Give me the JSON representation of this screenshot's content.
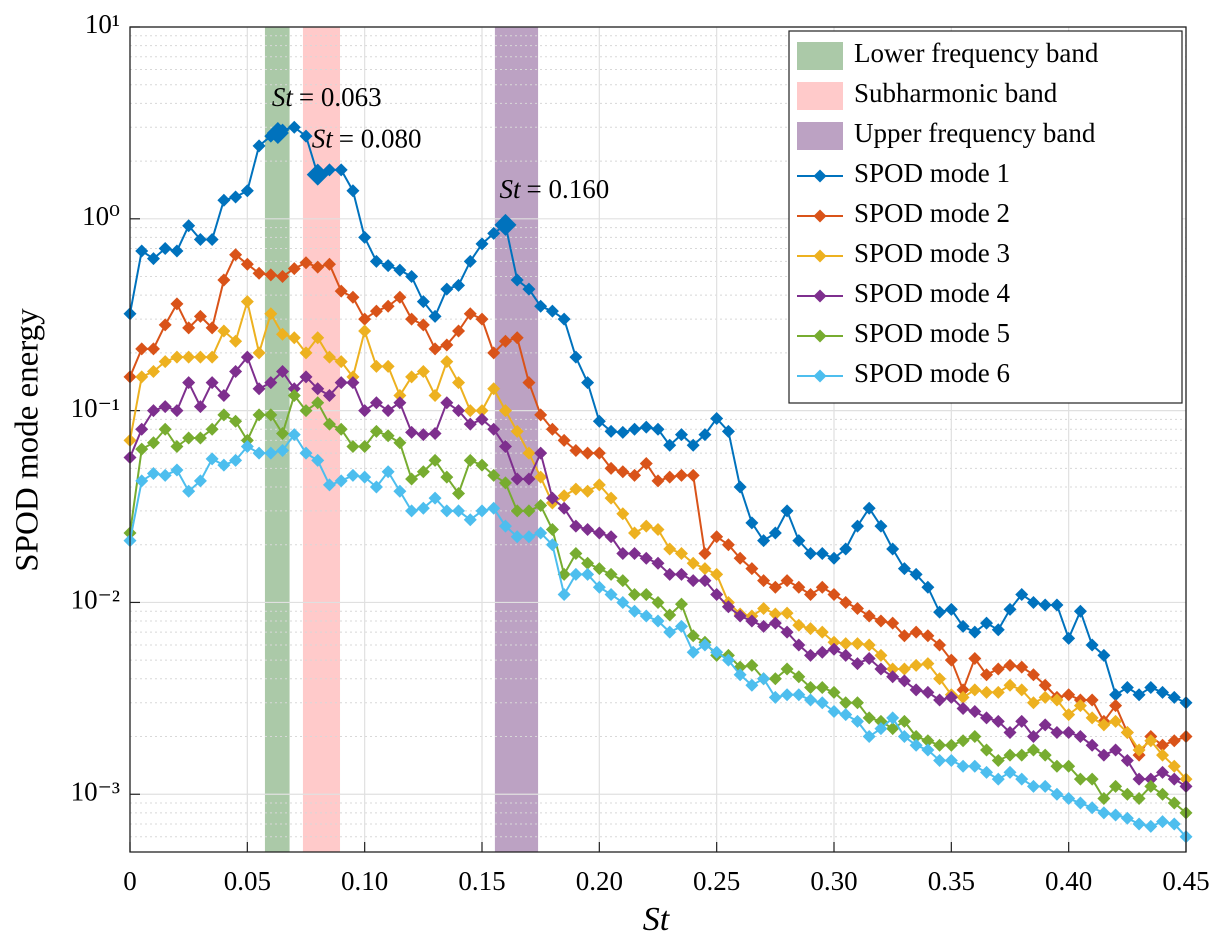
{
  "chart_data": {
    "type": "line",
    "xlabel": "St",
    "ylabel": "SPOD mode energy",
    "xlim": [
      0,
      0.45
    ],
    "ylim": [
      0.0005,
      10
    ],
    "log_y": true,
    "grid": true,
    "minor_grid": true,
    "legend": "top-right",
    "xticks": [
      0,
      0.05,
      {
        "value": 0.1,
        "label": "0.10"
      },
      0.15,
      {
        "value": 0.2,
        "label": "0.20"
      },
      0.25,
      {
        "value": 0.3,
        "label": "0.30"
      },
      0.35,
      {
        "value": 0.4,
        "label": "0.40"
      },
      0.45
    ],
    "yticks": [
      {
        "value": 0.001,
        "label": "10⁻³"
      },
      {
        "value": 0.01,
        "label": "10⁻²"
      },
      {
        "value": 0.1,
        "label": "10⁻¹"
      },
      {
        "value": 1,
        "label": "10⁰"
      },
      {
        "value": 10,
        "label": "10¹"
      }
    ],
    "bands": [
      {
        "name": "Lower frequency band",
        "color": "#abc9a8",
        "range": [
          0.0575,
          0.068
        ]
      },
      {
        "name": "Subharmonic band",
        "color": "#ffcaca",
        "range": [
          0.0737,
          0.0895
        ]
      },
      {
        "name": "Upper frequency band",
        "color": "#bca2c3",
        "range": [
          0.1555,
          0.1739
        ]
      }
    ],
    "x": [
      0,
      0.005,
      0.01,
      0.015,
      0.02,
      0.025,
      0.03,
      0.035,
      0.04,
      0.045,
      0.05,
      0.055,
      0.06,
      0.065,
      0.07,
      0.075,
      0.08,
      0.085,
      0.09,
      0.095,
      0.1,
      0.105,
      0.11,
      0.115,
      0.12,
      0.125,
      0.13,
      0.135,
      0.14,
      0.145,
      0.15,
      0.155,
      0.16,
      0.165,
      0.17,
      0.175,
      0.18,
      0.185,
      0.19,
      0.195,
      0.2,
      0.205,
      0.21,
      0.215,
      0.22,
      0.225,
      0.23,
      0.235,
      0.24,
      0.245,
      0.25,
      0.255,
      0.26,
      0.265,
      0.27,
      0.275,
      0.28,
      0.285,
      0.29,
      0.295,
      0.3,
      0.305,
      0.31,
      0.315,
      0.32,
      0.325,
      0.33,
      0.335,
      0.34,
      0.345,
      0.35,
      0.355,
      0.36,
      0.365,
      0.37,
      0.375,
      0.38,
      0.385,
      0.39,
      0.395,
      0.4,
      0.405,
      0.41,
      0.415,
      0.42,
      0.425,
      0.43,
      0.435,
      0.44,
      0.445,
      0.45
    ],
    "series": [
      {
        "name": "SPOD mode 1",
        "color": "#0072bd",
        "values": [
          0.32,
          0.68,
          0.62,
          0.7,
          0.68,
          0.92,
          0.78,
          0.78,
          1.25,
          1.3,
          1.4,
          2.4,
          2.7,
          2.9,
          3.0,
          2.7,
          1.7,
          1.8,
          1.8,
          1.4,
          0.8,
          0.6,
          0.57,
          0.54,
          0.5,
          0.37,
          0.31,
          0.43,
          0.45,
          0.6,
          0.74,
          0.84,
          0.93,
          0.48,
          0.43,
          0.35,
          0.33,
          0.3,
          0.19,
          0.14,
          0.088,
          0.078,
          0.077,
          0.08,
          0.082,
          0.08,
          0.066,
          0.075,
          0.066,
          0.075,
          0.091,
          0.078,
          0.04,
          0.026,
          0.021,
          0.023,
          0.03,
          0.021,
          0.018,
          0.018,
          0.017,
          0.019,
          0.025,
          0.031,
          0.025,
          0.019,
          0.015,
          0.014,
          0.012,
          0.0089,
          0.0092,
          0.0075,
          0.007,
          0.0078,
          0.0072,
          0.0092,
          0.011,
          0.01,
          0.0097,
          0.0097,
          0.0065,
          0.009,
          0.006,
          0.0053,
          0.0033,
          0.0036,
          0.0033,
          0.0036,
          0.0034,
          0.0032,
          0.003
        ]
      },
      {
        "name": "SPOD mode 2",
        "color": "#d95319",
        "values": [
          0.15,
          0.21,
          0.21,
          0.28,
          0.36,
          0.27,
          0.31,
          0.27,
          0.48,
          0.65,
          0.58,
          0.52,
          0.51,
          0.5,
          0.55,
          0.59,
          0.56,
          0.58,
          0.42,
          0.39,
          0.3,
          0.33,
          0.35,
          0.39,
          0.3,
          0.28,
          0.21,
          0.22,
          0.26,
          0.32,
          0.3,
          0.2,
          0.23,
          0.24,
          0.14,
          0.095,
          0.08,
          0.07,
          0.062,
          0.06,
          0.06,
          0.05,
          0.048,
          0.046,
          0.053,
          0.043,
          0.045,
          0.046,
          0.046,
          0.018,
          0.022,
          0.02,
          0.017,
          0.015,
          0.013,
          0.012,
          0.013,
          0.012,
          0.011,
          0.012,
          0.011,
          0.01,
          0.0093,
          0.0085,
          0.008,
          0.0078,
          0.0067,
          0.007,
          0.0067,
          0.006,
          0.005,
          0.0035,
          0.0051,
          0.0042,
          0.0045,
          0.0047,
          0.0046,
          0.0042,
          0.0037,
          0.0032,
          0.0033,
          0.0031,
          0.0031,
          0.0024,
          0.0029,
          0.0021,
          0.0016,
          0.002,
          0.0018,
          0.0019,
          0.002
        ]
      },
      {
        "name": "SPOD mode 3",
        "color": "#edb120",
        "values": [
          0.07,
          0.15,
          0.16,
          0.18,
          0.19,
          0.19,
          0.19,
          0.19,
          0.26,
          0.23,
          0.37,
          0.2,
          0.32,
          0.25,
          0.24,
          0.2,
          0.24,
          0.19,
          0.18,
          0.15,
          0.26,
          0.17,
          0.17,
          0.12,
          0.15,
          0.16,
          0.12,
          0.18,
          0.14,
          0.1,
          0.1,
          0.13,
          0.1,
          0.078,
          0.06,
          0.045,
          0.033,
          0.036,
          0.039,
          0.038,
          0.041,
          0.035,
          0.029,
          0.023,
          0.025,
          0.024,
          0.019,
          0.018,
          0.016,
          0.015,
          0.014,
          0.01,
          0.0087,
          0.0085,
          0.0093,
          0.0087,
          0.0088,
          0.0076,
          0.0073,
          0.007,
          0.0062,
          0.0061,
          0.0061,
          0.006,
          0.0053,
          0.0045,
          0.0045,
          0.0047,
          0.0048,
          0.004,
          0.0033,
          0.0032,
          0.0035,
          0.0034,
          0.0034,
          0.0037,
          0.0035,
          0.003,
          0.0032,
          0.0031,
          0.0026,
          0.0029,
          0.0025,
          0.0023,
          0.0024,
          0.0021,
          0.0017,
          0.0019,
          0.0016,
          0.0014,
          0.0012
        ]
      },
      {
        "name": "SPOD mode 4",
        "color": "#7e2f8e",
        "values": [
          0.057,
          0.08,
          0.1,
          0.105,
          0.1,
          0.14,
          0.105,
          0.14,
          0.12,
          0.16,
          0.19,
          0.13,
          0.14,
          0.16,
          0.13,
          0.15,
          0.13,
          0.12,
          0.14,
          0.14,
          0.1,
          0.11,
          0.1,
          0.11,
          0.077,
          0.075,
          0.076,
          0.11,
          0.1,
          0.085,
          0.09,
          0.08,
          0.065,
          0.044,
          0.044,
          0.06,
          0.035,
          0.031,
          0.025,
          0.024,
          0.023,
          0.022,
          0.018,
          0.018,
          0.017,
          0.016,
          0.014,
          0.014,
          0.013,
          0.013,
          0.011,
          0.0095,
          0.0085,
          0.008,
          0.0075,
          0.0078,
          0.007,
          0.006,
          0.0053,
          0.0055,
          0.0057,
          0.0053,
          0.0048,
          0.0051,
          0.0045,
          0.0041,
          0.0039,
          0.0035,
          0.0034,
          0.0031,
          0.0032,
          0.0028,
          0.0027,
          0.0025,
          0.0024,
          0.0021,
          0.0024,
          0.002,
          0.0023,
          0.0021,
          0.0021,
          0.002,
          0.0018,
          0.0016,
          0.0017,
          0.0015,
          0.0012,
          0.0012,
          0.0013,
          0.0012,
          0.0011
        ]
      },
      {
        "name": "SPOD mode 5",
        "color": "#77ac30",
        "values": [
          0.023,
          0.063,
          0.068,
          0.08,
          0.065,
          0.072,
          0.072,
          0.08,
          0.095,
          0.088,
          0.07,
          0.095,
          0.095,
          0.076,
          0.12,
          0.1,
          0.11,
          0.085,
          0.08,
          0.065,
          0.065,
          0.078,
          0.074,
          0.068,
          0.044,
          0.048,
          0.055,
          0.045,
          0.037,
          0.055,
          0.052,
          0.046,
          0.042,
          0.03,
          0.03,
          0.032,
          0.024,
          0.014,
          0.018,
          0.016,
          0.015,
          0.014,
          0.013,
          0.011,
          0.011,
          0.01,
          0.0086,
          0.0098,
          0.0067,
          0.0062,
          0.0053,
          0.0053,
          0.0046,
          0.0047,
          0.004,
          0.004,
          0.0045,
          0.0041,
          0.0036,
          0.0036,
          0.0034,
          0.003,
          0.003,
          0.0025,
          0.0024,
          0.0022,
          0.0024,
          0.002,
          0.0019,
          0.0018,
          0.0018,
          0.0019,
          0.002,
          0.0017,
          0.0015,
          0.0016,
          0.0016,
          0.0017,
          0.0016,
          0.0014,
          0.0014,
          0.0012,
          0.0012,
          0.00095,
          0.0011,
          0.001,
          0.00095,
          0.0011,
          0.001,
          0.0009,
          0.0008
        ]
      },
      {
        "name": "SPOD mode 6",
        "color": "#4dbeee",
        "values": [
          0.021,
          0.043,
          0.047,
          0.046,
          0.049,
          0.038,
          0.043,
          0.056,
          0.052,
          0.055,
          0.065,
          0.06,
          0.06,
          0.062,
          0.075,
          0.06,
          0.055,
          0.041,
          0.043,
          0.046,
          0.045,
          0.04,
          0.048,
          0.038,
          0.03,
          0.031,
          0.035,
          0.03,
          0.03,
          0.027,
          0.03,
          0.031,
          0.025,
          0.022,
          0.022,
          0.023,
          0.02,
          0.011,
          0.014,
          0.014,
          0.012,
          0.011,
          0.01,
          0.009,
          0.0085,
          0.008,
          0.007,
          0.0075,
          0.0055,
          0.006,
          0.0055,
          0.005,
          0.0042,
          0.0037,
          0.004,
          0.0032,
          0.0033,
          0.0033,
          0.0031,
          0.003,
          0.0027,
          0.0026,
          0.0024,
          0.002,
          0.0022,
          0.0025,
          0.002,
          0.0018,
          0.0017,
          0.0015,
          0.0015,
          0.0014,
          0.0014,
          0.0013,
          0.0012,
          0.0013,
          0.0012,
          0.0011,
          0.0011,
          0.001,
          0.00095,
          0.0009,
          0.00085,
          0.0008,
          0.00078,
          0.00075,
          0.0007,
          0.00068,
          0.00072,
          0.0007,
          0.0006
        ]
      }
    ],
    "annotations": [
      {
        "variable": "St",
        "text": "= 0.063",
        "x": 0.063,
        "y": 2.8
      },
      {
        "variable": "St",
        "text": "= 0.080",
        "x": 0.08,
        "y": 1.7
      },
      {
        "variable": "St",
        "text": "= 0.160",
        "x": 0.16,
        "y": 0.93
      }
    ]
  }
}
